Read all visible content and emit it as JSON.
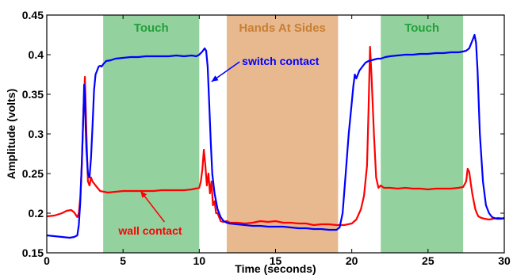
{
  "chart_data": {
    "type": "line",
    "xlabel": "Time (seconds)",
    "ylabel": "Amplitude (volts)",
    "xlim": [
      0,
      30
    ],
    "ylim": [
      0.15,
      0.45
    ],
    "xticks": [
      0,
      5,
      10,
      15,
      20,
      25,
      30
    ],
    "xtick_labels": [
      "0",
      "5",
      "10",
      "15",
      "20",
      "25",
      "30"
    ],
    "yticks": [
      0.15,
      0.2,
      0.25,
      0.3,
      0.35,
      0.4,
      0.45
    ],
    "ytick_labels": [
      "0.15",
      "0.2",
      "0.25",
      "0.3",
      "0.35",
      "0.4",
      "0.45"
    ],
    "grid": false,
    "regions": [
      {
        "label": "Touch",
        "x_start": 3.7,
        "x_end": 10.0,
        "fill": "#93d19f",
        "label_color": "#22a13a"
      },
      {
        "label": "Hands At Sides",
        "x_start": 11.8,
        "x_end": 19.1,
        "fill": "#e8b98f",
        "label_color": "#c87f34"
      },
      {
        "label": "Touch",
        "x_start": 21.9,
        "x_end": 27.3,
        "fill": "#93d19f",
        "label_color": "#22a13a"
      }
    ],
    "annotations": [
      {
        "text": "switch contact",
        "color": "#0000ff",
        "text_x": 12.8,
        "text_y": 0.387,
        "arrow_to_x": 10.8,
        "arrow_to_y": 0.366
      },
      {
        "text": "wall contact",
        "color": "#ff0000",
        "text_x": 4.7,
        "text_y": 0.173,
        "arrow_to_x": 6.15,
        "arrow_to_y": 0.228
      }
    ],
    "series": [
      {
        "name": "switch contact",
        "color": "#0000ff",
        "x": [
          0,
          0.5,
          1.0,
          1.5,
          1.8,
          2.0,
          2.1,
          2.2,
          2.3,
          2.4,
          2.45,
          2.5,
          2.55,
          2.6,
          2.7,
          2.8,
          2.9,
          3.0,
          3.1,
          3.2,
          3.3,
          3.4,
          3.5,
          3.6,
          3.7,
          3.9,
          4.2,
          4.5,
          5.0,
          5.5,
          6.0,
          6.5,
          7.0,
          7.5,
          8.0,
          8.5,
          9.0,
          9.5,
          9.8,
          10.0,
          10.2,
          10.35,
          10.45,
          10.55,
          10.65,
          10.75,
          10.85,
          11.0,
          11.2,
          11.4,
          11.6,
          11.8,
          12.0,
          12.5,
          13.0,
          13.5,
          14.0,
          14.5,
          15.0,
          15.5,
          16.0,
          16.5,
          17.0,
          17.5,
          18.0,
          18.5,
          19.0,
          19.2,
          19.4,
          19.6,
          19.8,
          20.0,
          20.1,
          20.2,
          20.3,
          20.5,
          20.7,
          20.9,
          21.1,
          21.3,
          21.5,
          21.7,
          21.9,
          22.2,
          22.5,
          23.0,
          23.5,
          24.0,
          24.5,
          25.0,
          25.5,
          26.0,
          26.5,
          27.0,
          27.3,
          27.5,
          27.7,
          27.85,
          27.95,
          28.05,
          28.15,
          28.25,
          28.4,
          28.6,
          28.8,
          29.0,
          29.2,
          29.5,
          29.8,
          30.0
        ],
        "y": [
          0.172,
          0.171,
          0.17,
          0.169,
          0.17,
          0.172,
          0.185,
          0.215,
          0.265,
          0.325,
          0.362,
          0.35,
          0.31,
          0.28,
          0.25,
          0.245,
          0.27,
          0.31,
          0.355,
          0.375,
          0.38,
          0.385,
          0.386,
          0.385,
          0.388,
          0.392,
          0.393,
          0.395,
          0.396,
          0.397,
          0.397,
          0.398,
          0.398,
          0.398,
          0.398,
          0.399,
          0.398,
          0.399,
          0.398,
          0.4,
          0.404,
          0.408,
          0.405,
          0.385,
          0.34,
          0.29,
          0.25,
          0.225,
          0.205,
          0.195,
          0.19,
          0.188,
          0.187,
          0.186,
          0.185,
          0.184,
          0.184,
          0.183,
          0.183,
          0.183,
          0.182,
          0.181,
          0.181,
          0.18,
          0.18,
          0.179,
          0.179,
          0.182,
          0.2,
          0.25,
          0.3,
          0.34,
          0.36,
          0.375,
          0.37,
          0.38,
          0.385,
          0.39,
          0.392,
          0.393,
          0.394,
          0.395,
          0.395,
          0.397,
          0.398,
          0.399,
          0.4,
          0.4,
          0.401,
          0.401,
          0.402,
          0.402,
          0.403,
          0.403,
          0.404,
          0.405,
          0.408,
          0.415,
          0.42,
          0.425,
          0.415,
          0.38,
          0.3,
          0.24,
          0.21,
          0.2,
          0.195,
          0.193,
          0.193,
          0.194
        ]
      },
      {
        "name": "wall contact",
        "color": "#ff0000",
        "x": [
          0,
          0.5,
          1.0,
          1.3,
          1.6,
          1.8,
          2.0,
          2.1,
          2.2,
          2.3,
          2.4,
          2.5,
          2.6,
          2.7,
          2.8,
          2.9,
          3.0,
          3.2,
          3.5,
          4.0,
          4.5,
          5.0,
          5.5,
          6.0,
          6.5,
          7.0,
          7.5,
          8.0,
          8.5,
          9.0,
          9.5,
          10.0,
          10.1,
          10.2,
          10.3,
          10.4,
          10.5,
          10.6,
          10.7,
          10.8,
          10.9,
          11.0,
          11.1,
          11.2,
          11.4,
          11.6,
          11.8,
          12.0,
          12.5,
          13.0,
          13.5,
          14.0,
          14.5,
          15.0,
          15.5,
          16.0,
          16.5,
          17.0,
          17.5,
          18.0,
          18.5,
          19.0,
          19.5,
          20.0,
          20.3,
          20.6,
          20.8,
          21.0,
          21.1,
          21.2,
          21.3,
          21.45,
          21.6,
          21.75,
          21.9,
          22.1,
          22.5,
          23.0,
          23.5,
          24.0,
          24.5,
          25.0,
          25.5,
          26.0,
          26.5,
          27.0,
          27.3,
          27.5,
          27.6,
          27.7,
          27.8,
          27.9,
          28.0,
          28.1,
          28.2,
          28.3,
          28.5,
          28.7,
          29.0,
          29.3,
          29.6,
          30.0
        ],
        "y": [
          0.196,
          0.197,
          0.2,
          0.203,
          0.204,
          0.201,
          0.195,
          0.2,
          0.22,
          0.26,
          0.33,
          0.372,
          0.3,
          0.24,
          0.235,
          0.245,
          0.24,
          0.235,
          0.228,
          0.226,
          0.227,
          0.228,
          0.228,
          0.228,
          0.228,
          0.228,
          0.229,
          0.229,
          0.229,
          0.229,
          0.23,
          0.232,
          0.24,
          0.255,
          0.28,
          0.26,
          0.235,
          0.25,
          0.225,
          0.24,
          0.21,
          0.215,
          0.2,
          0.2,
          0.19,
          0.189,
          0.19,
          0.188,
          0.188,
          0.187,
          0.188,
          0.19,
          0.189,
          0.19,
          0.188,
          0.188,
          0.187,
          0.187,
          0.185,
          0.186,
          0.186,
          0.185,
          0.185,
          0.187,
          0.192,
          0.205,
          0.222,
          0.26,
          0.33,
          0.41,
          0.37,
          0.3,
          0.245,
          0.232,
          0.235,
          0.232,
          0.232,
          0.231,
          0.232,
          0.231,
          0.231,
          0.23,
          0.231,
          0.231,
          0.231,
          0.232,
          0.233,
          0.24,
          0.256,
          0.252,
          0.238,
          0.225,
          0.215,
          0.205,
          0.2,
          0.196,
          0.194,
          0.193,
          0.192,
          0.193,
          0.194,
          0.193
        ]
      }
    ]
  }
}
